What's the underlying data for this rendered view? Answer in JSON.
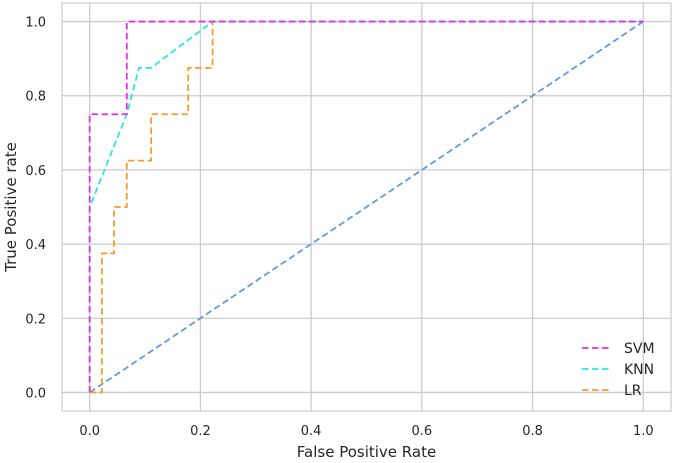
{
  "chart_data": {
    "type": "line",
    "title": "",
    "xlabel": "False Positive Rate",
    "ylabel": "True Positive rate",
    "xlim": [
      -0.05,
      1.05
    ],
    "ylim": [
      -0.05,
      1.05
    ],
    "xticks": [
      0.0,
      0.2,
      0.4,
      0.6,
      0.8,
      1.0
    ],
    "yticks": [
      0.0,
      0.2,
      0.4,
      0.6,
      0.8,
      1.0
    ],
    "xtick_labels": [
      "0.0",
      "0.2",
      "0.4",
      "0.6",
      "0.8",
      "1.0"
    ],
    "ytick_labels": [
      "0.0",
      "0.2",
      "0.4",
      "0.6",
      "0.8",
      "1.0"
    ],
    "grid": true,
    "legend_position": "bottom-right",
    "colors": {
      "grid": "#cccccc",
      "frame": "#cccccc",
      "text": "#262626",
      "background": "#ffffff"
    },
    "series": [
      {
        "name": "SVM",
        "color": "#e52ee5",
        "line_style": "dashed",
        "x": [
          0.0,
          0.0,
          0.0,
          0.067,
          0.067,
          1.0
        ],
        "y": [
          0.0,
          0.5,
          0.75,
          0.75,
          1.0,
          1.0
        ]
      },
      {
        "name": "KNN",
        "color": "#2ee5e5",
        "line_style": "dashed",
        "x": [
          0.0,
          0.0,
          0.067,
          0.089,
          0.111,
          0.222,
          1.0
        ],
        "y": [
          0.0,
          0.5,
          0.75,
          0.875,
          0.875,
          1.0,
          1.0
        ]
      },
      {
        "name": "LR",
        "color": "#f59c2e",
        "line_style": "dashed",
        "x": [
          0.0,
          0.022,
          0.022,
          0.044,
          0.044,
          0.067,
          0.067,
          0.111,
          0.111,
          0.178,
          0.178,
          0.222,
          0.222,
          1.0
        ],
        "y": [
          0.0,
          0.0,
          0.375,
          0.375,
          0.5,
          0.5,
          0.625,
          0.625,
          0.75,
          0.75,
          0.875,
          0.875,
          1.0,
          1.0
        ]
      },
      {
        "name": "",
        "color": "#5b9ee0",
        "line_style": "dashed",
        "x": [
          0.0,
          1.0
        ],
        "y": [
          0.0,
          1.0
        ]
      }
    ]
  }
}
